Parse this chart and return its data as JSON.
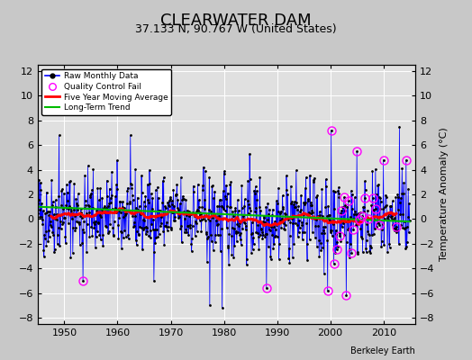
{
  "title": "CLEARWATER DAM",
  "subtitle": "37.133 N, 90.767 W (United States)",
  "ylabel": "Temperature Anomaly (°C)",
  "credit": "Berkeley Earth",
  "xlim": [
    1945,
    2016
  ],
  "ylim": [
    -8.5,
    12.5
  ],
  "yticks": [
    -8,
    -6,
    -4,
    -2,
    0,
    2,
    4,
    6,
    8,
    10,
    12
  ],
  "xticks": [
    1950,
    1960,
    1970,
    1980,
    1990,
    2000,
    2010
  ],
  "start_year": 1945,
  "end_year": 2015,
  "bg_color": "#c8c8c8",
  "plot_bg_color": "#e0e0e0",
  "raw_color": "#0000ff",
  "ma_color": "#ff0000",
  "trend_color": "#00bb00",
  "qc_color": "#ff00ff",
  "grid_color": "#ffffff",
  "title_fontsize": 13,
  "subtitle_fontsize": 9,
  "label_fontsize": 8,
  "seed": 42
}
